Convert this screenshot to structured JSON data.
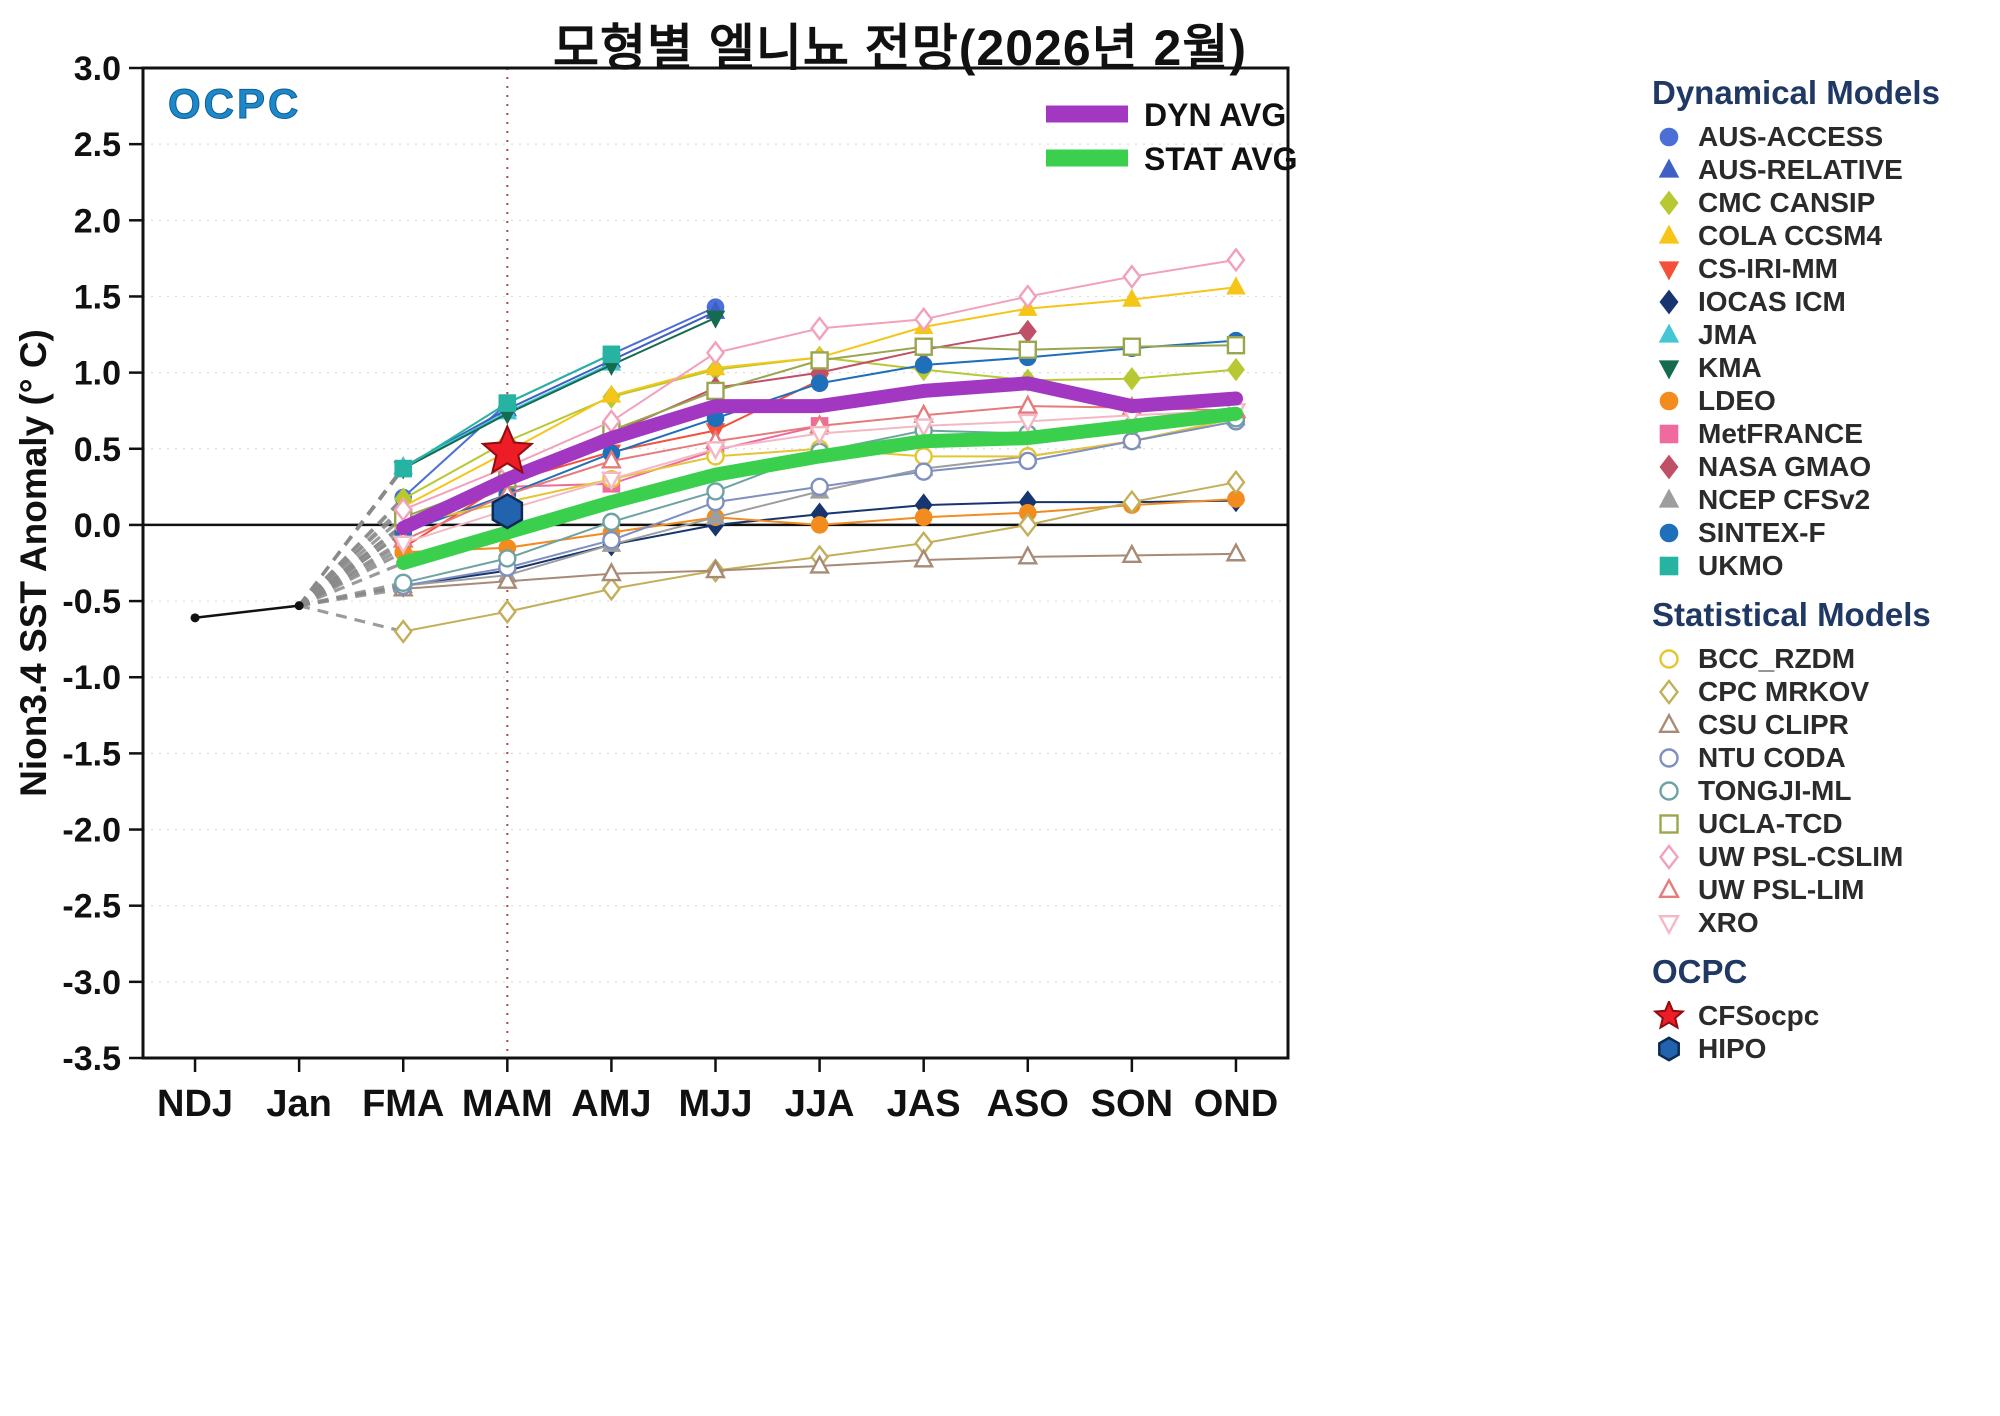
{
  "watermark": "OCPC",
  "inner_legend": [
    {
      "label": "DYN AVG",
      "color": "#a238c2"
    },
    {
      "label": "STAT AVG",
      "color": "#3bcf4e"
    }
  ],
  "legend": {
    "sections": [
      {
        "title": "Dynamical Models",
        "source": "series"
      },
      {
        "title": "Statistical Models",
        "source": "series"
      },
      {
        "title": "OCPC",
        "source": "ocpc"
      }
    ]
  },
  "chart_data": {
    "type": "line",
    "title": "모형별 엘니뇨 전망(2026년 2월)",
    "xlabel": "",
    "ylabel": "Nion3.4 SST Anomaly (° C)",
    "ylim": [
      -3.5,
      3.0
    ],
    "ytick_step": 0.5,
    "grid": "dotted-horizontal",
    "legend_position": "right",
    "categories": [
      "NDJ",
      "Jan",
      "FMA",
      "MAM",
      "AMJ",
      "MJJ",
      "JJA",
      "JAS",
      "ASO",
      "SON",
      "OND"
    ],
    "highlight_column": "MAM",
    "observation": {
      "name": "Observation",
      "color": "#111111",
      "values": [
        -0.61,
        -0.53,
        null,
        null,
        null,
        null,
        null,
        null,
        null,
        null,
        null
      ]
    },
    "fan_lines": {
      "description": "dashed gray lines from Jan observation to each model start at FMA",
      "color": "#8a8a8a"
    },
    "averages": [
      {
        "name": "DYN AVG",
        "color": "#a238c2",
        "values": [
          null,
          null,
          -0.02,
          0.3,
          0.57,
          0.78,
          0.78,
          0.88,
          0.93,
          0.78,
          0.83
        ]
      },
      {
        "name": "STAT AVG",
        "color": "#3bcf4e",
        "values": [
          null,
          null,
          -0.25,
          -0.05,
          0.15,
          0.33,
          0.45,
          0.55,
          0.57,
          0.65,
          0.73
        ]
      }
    ],
    "series": [
      {
        "name": "AUS-ACCESS",
        "group": "Dynamical Models",
        "marker": "circle",
        "filled": true,
        "color": "#4b6fd6",
        "values": [
          null,
          null,
          0.18,
          0.8,
          1.12,
          1.43,
          null,
          null,
          null,
          null,
          null
        ]
      },
      {
        "name": "AUS-RELATIVE",
        "group": "Dynamical Models",
        "marker": "triangle-up",
        "filled": true,
        "color": "#3f5fc4",
        "values": [
          null,
          null,
          0.38,
          0.76,
          1.08,
          1.4,
          null,
          null,
          null,
          null,
          null
        ]
      },
      {
        "name": "CMC CANSIP",
        "group": "Dynamical Models",
        "marker": "diamond",
        "filled": true,
        "color": "#b8c832",
        "values": [
          null,
          null,
          0.17,
          0.55,
          0.84,
          1.02,
          1.1,
          1.02,
          0.95,
          0.96,
          1.02
        ]
      },
      {
        "name": "COLA CCSM4",
        "group": "Dynamical Models",
        "marker": "triangle-up",
        "filled": true,
        "color": "#f5c518",
        "values": [
          null,
          null,
          0.12,
          0.48,
          0.85,
          1.03,
          1.1,
          1.3,
          1.42,
          1.48,
          1.56
        ]
      },
      {
        "name": "CS-IRI-MM",
        "group": "Dynamical Models",
        "marker": "triangle-down",
        "filled": true,
        "color": "#f4503a",
        "values": [
          null,
          null,
          -0.15,
          0.28,
          0.48,
          0.62,
          0.95,
          null,
          null,
          null,
          null
        ]
      },
      {
        "name": "IOCAS ICM",
        "group": "Dynamical Models",
        "marker": "diamond",
        "filled": true,
        "color": "#17356f",
        "values": [
          null,
          null,
          -0.4,
          -0.3,
          -0.13,
          0.0,
          0.07,
          0.13,
          0.15,
          0.15,
          0.16
        ]
      },
      {
        "name": "JMA",
        "group": "Dynamical Models",
        "marker": "triangle-up",
        "filled": true,
        "color": "#45c6d6",
        "values": [
          null,
          null,
          0.38,
          0.74,
          1.06,
          null,
          null,
          null,
          null,
          null,
          null
        ]
      },
      {
        "name": "KMA",
        "group": "Dynamical Models",
        "marker": "triangle-down",
        "filled": true,
        "color": "#156b50",
        "values": [
          null,
          null,
          0.37,
          0.73,
          1.05,
          1.36,
          null,
          null,
          null,
          null,
          null
        ]
      },
      {
        "name": "LDEO",
        "group": "Dynamical Models",
        "marker": "circle",
        "filled": true,
        "color": "#f28c1e",
        "values": [
          null,
          null,
          -0.18,
          -0.15,
          -0.05,
          0.05,
          0.0,
          0.05,
          0.08,
          0.13,
          0.17
        ]
      },
      {
        "name": "MetFRANCE",
        "group": "Dynamical Models",
        "marker": "square",
        "filled": true,
        "color": "#ef6a9e",
        "values": [
          null,
          null,
          -0.05,
          0.25,
          0.27,
          0.49,
          0.65,
          null,
          null,
          null,
          null
        ]
      },
      {
        "name": "NASA GMAO",
        "group": "Dynamical Models",
        "marker": "diamond",
        "filled": true,
        "color": "#c05068",
        "values": [
          null,
          null,
          0.0,
          0.33,
          0.6,
          0.9,
          1.0,
          1.15,
          1.27,
          null,
          null
        ]
      },
      {
        "name": "NCEP CFSv2",
        "group": "Dynamical Models",
        "marker": "triangle-up",
        "filled": true,
        "color": "#9e9e9e",
        "values": [
          null,
          null,
          -0.4,
          -0.33,
          -0.13,
          0.05,
          0.22,
          0.37,
          0.45,
          0.55,
          0.7
        ]
      },
      {
        "name": "SINTEX-F",
        "group": "Dynamical Models",
        "marker": "circle",
        "filled": true,
        "color": "#1f6fba",
        "values": [
          null,
          null,
          -0.05,
          0.2,
          0.47,
          0.7,
          0.93,
          1.05,
          1.1,
          1.16,
          1.21
        ]
      },
      {
        "name": "UKMO",
        "group": "Dynamical Models",
        "marker": "square",
        "filled": true,
        "color": "#27b3a2",
        "values": [
          null,
          null,
          0.37,
          0.8,
          1.12,
          null,
          null,
          null,
          null,
          null,
          null
        ]
      },
      {
        "name": "BCC_RZDM",
        "group": "Statistical Models",
        "marker": "circle",
        "filled": false,
        "color": "#e5c534",
        "values": [
          null,
          null,
          0.0,
          0.15,
          0.3,
          0.45,
          0.5,
          0.45,
          0.45,
          0.55,
          0.7
        ]
      },
      {
        "name": "CPC MRKOV",
        "group": "Statistical Models",
        "marker": "diamond",
        "filled": false,
        "color": "#c3af5a",
        "values": [
          null,
          null,
          -0.7,
          -0.57,
          -0.42,
          -0.3,
          -0.21,
          -0.12,
          0.0,
          0.15,
          0.28
        ]
      },
      {
        "name": "CSU CLIPR",
        "group": "Statistical Models",
        "marker": "triangle-up",
        "filled": false,
        "color": "#a78b76",
        "values": [
          null,
          null,
          -0.42,
          -0.37,
          -0.32,
          -0.3,
          -0.27,
          -0.23,
          -0.21,
          -0.2,
          -0.19
        ]
      },
      {
        "name": "NTU CODA",
        "group": "Statistical Models",
        "marker": "circle",
        "filled": false,
        "color": "#7f8fbf",
        "values": [
          null,
          null,
          -0.4,
          -0.28,
          -0.1,
          0.15,
          0.25,
          0.35,
          0.42,
          0.55,
          0.68
        ]
      },
      {
        "name": "TONGJI-ML",
        "group": "Statistical Models",
        "marker": "circle",
        "filled": false,
        "color": "#6fa3a3",
        "values": [
          null,
          null,
          -0.38,
          -0.22,
          0.02,
          0.22,
          0.48,
          0.62,
          0.6,
          0.65,
          0.7
        ]
      },
      {
        "name": "UCLA-TCD",
        "group": "Statistical Models",
        "marker": "square",
        "filled": false,
        "color": "#9aa64e",
        "values": [
          null,
          null,
          0.05,
          0.3,
          0.62,
          0.88,
          1.08,
          1.17,
          1.15,
          1.17,
          1.18
        ]
      },
      {
        "name": "UW PSL-CSLIM",
        "group": "Statistical Models",
        "marker": "diamond",
        "filled": false,
        "color": "#f2a0bb",
        "values": [
          null,
          null,
          0.1,
          0.38,
          0.68,
          1.13,
          1.29,
          1.35,
          1.5,
          1.63,
          1.74
        ]
      },
      {
        "name": "UW PSL-LIM",
        "group": "Statistical Models",
        "marker": "triangle-up",
        "filled": false,
        "color": "#e57b7b",
        "values": [
          null,
          null,
          -0.1,
          0.2,
          0.42,
          0.55,
          0.65,
          0.72,
          0.78,
          0.77,
          0.75
        ]
      },
      {
        "name": "XRO",
        "group": "Statistical Models",
        "marker": "triangle-down",
        "filled": false,
        "color": "#f3b8c4",
        "values": [
          null,
          null,
          -0.12,
          0.1,
          0.3,
          0.5,
          0.6,
          0.65,
          0.68,
          0.72,
          0.75
        ]
      }
    ],
    "ocpc_markers": [
      {
        "name": "CFSocpc",
        "marker": "star",
        "color": "#ee1c25",
        "category": "MAM",
        "value": 0.48
      },
      {
        "name": "HIPO",
        "marker": "hexagon",
        "color": "#2263ae",
        "category": "MAM",
        "value": 0.09
      }
    ]
  }
}
